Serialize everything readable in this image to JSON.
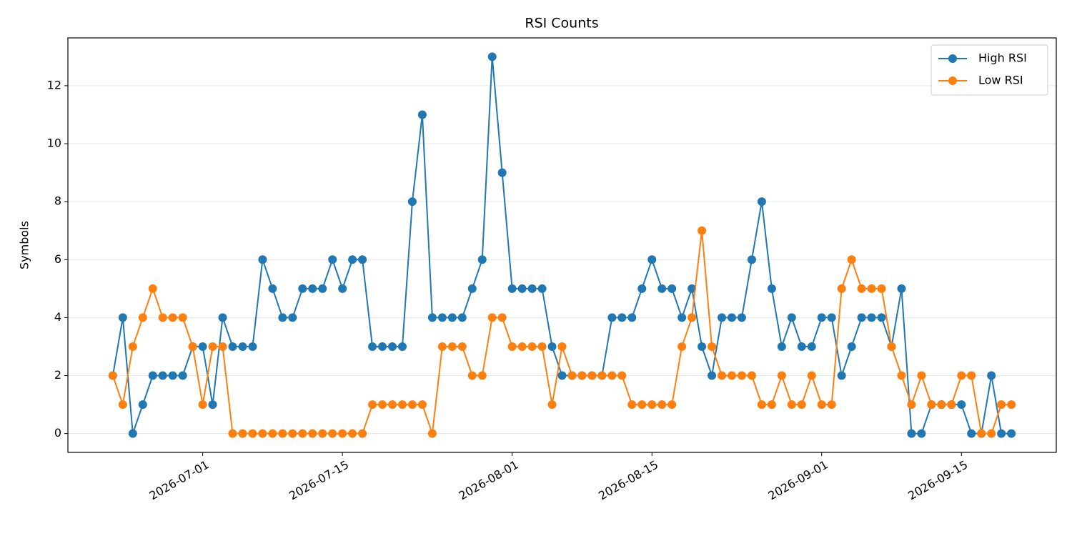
{
  "chart_data": {
    "type": "line",
    "title": "RSI Counts",
    "y_label": "Symbols",
    "x": [
      "2026-06-22",
      "2026-06-23",
      "2026-06-24",
      "2026-06-25",
      "2026-06-26",
      "2026-06-27",
      "2026-06-28",
      "2026-06-29",
      "2026-06-30",
      "2026-07-01",
      "2026-07-02",
      "2026-07-03",
      "2026-07-04",
      "2026-07-05",
      "2026-07-06",
      "2026-07-07",
      "2026-07-08",
      "2026-07-09",
      "2026-07-10",
      "2026-07-11",
      "2026-07-12",
      "2026-07-13",
      "2026-07-14",
      "2026-07-15",
      "2026-07-16",
      "2026-07-17",
      "2026-07-18",
      "2026-07-19",
      "2026-07-20",
      "2026-07-21",
      "2026-07-22",
      "2026-07-23",
      "2026-07-24",
      "2026-07-25",
      "2026-07-26",
      "2026-07-27",
      "2026-07-28",
      "2026-07-29",
      "2026-07-30",
      "2026-07-31",
      "2026-08-01",
      "2026-08-02",
      "2026-08-03",
      "2026-08-04",
      "2026-08-05",
      "2026-08-06",
      "2026-08-07",
      "2026-08-08",
      "2026-08-09",
      "2026-08-10",
      "2026-08-11",
      "2026-08-12",
      "2026-08-13",
      "2026-08-14",
      "2026-08-15",
      "2026-08-16",
      "2026-08-17",
      "2026-08-18",
      "2026-08-19",
      "2026-08-20",
      "2026-08-21",
      "2026-08-22",
      "2026-08-23",
      "2026-08-24",
      "2026-08-25",
      "2026-08-26",
      "2026-08-27",
      "2026-08-28",
      "2026-08-29",
      "2026-08-30",
      "2026-08-31",
      "2026-09-01",
      "2026-09-02",
      "2026-09-03",
      "2026-09-04",
      "2026-09-05",
      "2026-09-06",
      "2026-09-07",
      "2026-09-08",
      "2026-09-09",
      "2026-09-10",
      "2026-09-11",
      "2026-09-12",
      "2026-09-13",
      "2026-09-14",
      "2026-09-15",
      "2026-09-16",
      "2026-09-17",
      "2026-09-18",
      "2026-09-19",
      "2026-09-20"
    ],
    "series": [
      {
        "name": "High RSI",
        "color": "#1f77b4",
        "values": [
          2,
          4,
          0,
          1,
          2,
          2,
          2,
          2,
          3,
          3,
          1,
          4,
          3,
          3,
          3,
          6,
          5,
          4,
          4,
          5,
          5,
          5,
          6,
          5,
          6,
          6,
          3,
          3,
          3,
          3,
          8,
          11,
          4,
          4,
          4,
          4,
          5,
          6,
          13,
          9,
          5,
          5,
          5,
          5,
          3,
          2,
          2,
          2,
          2,
          2,
          4,
          4,
          4,
          5,
          6,
          5,
          5,
          4,
          5,
          3,
          2,
          4,
          4,
          4,
          6,
          8,
          5,
          3,
          4,
          3,
          3,
          4,
          4,
          2,
          3,
          4,
          4,
          4,
          3,
          5,
          0,
          0,
          1,
          1,
          1,
          1,
          0,
          0,
          2,
          0,
          0
        ]
      },
      {
        "name": "Low RSI",
        "color": "#ff7f0e",
        "values": [
          2,
          1,
          3,
          4,
          5,
          4,
          4,
          4,
          3,
          1,
          3,
          3,
          0,
          0,
          0,
          0,
          0,
          0,
          0,
          0,
          0,
          0,
          0,
          0,
          0,
          0,
          1,
          1,
          1,
          1,
          1,
          1,
          0,
          3,
          3,
          3,
          2,
          2,
          4,
          4,
          3,
          3,
          3,
          3,
          1,
          3,
          2,
          2,
          2,
          2,
          2,
          2,
          1,
          1,
          1,
          1,
          1,
          3,
          4,
          7,
          3,
          2,
          2,
          2,
          2,
          1,
          1,
          2,
          1,
          1,
          2,
          1,
          1,
          5,
          6,
          5,
          5,
          5,
          3,
          2,
          1,
          2,
          1,
          1,
          1,
          2,
          2,
          0,
          0,
          1,
          1
        ]
      }
    ],
    "xlim": [
      "2026-06-17T12:00Z",
      "2026-09-24T12:00Z"
    ],
    "xticks": [
      "2026-07-01",
      "2026-07-15",
      "2026-08-01",
      "2026-08-15",
      "2026-09-01",
      "2026-09-15"
    ],
    "ylim": [
      -0.65,
      13.65
    ],
    "yticks": [
      0,
      2,
      4,
      6,
      8,
      10,
      12
    ],
    "grid": true,
    "legend": "upper right"
  }
}
